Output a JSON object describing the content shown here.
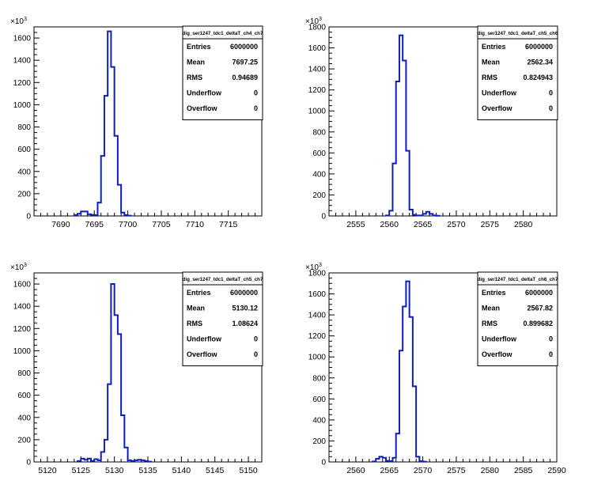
{
  "chart_data": [
    {
      "type": "histogram",
      "title": "",
      "stats_title": "dig_ser1247_tdc1_deltaT_ch4_ch7",
      "exponent_label": "10",
      "exponent_power": "3",
      "xlim": [
        7686,
        7720
      ],
      "ylim": [
        0,
        1700
      ],
      "xticks": [
        7690,
        7695,
        7700,
        7705,
        7710,
        7715
      ],
      "yticks": [
        0,
        200,
        400,
        600,
        800,
        1000,
        1200,
        1400,
        1600
      ],
      "bin_width": 0.5,
      "bins_x": [
        7692,
        7692.5,
        7693,
        7693.5,
        7694,
        7694.5,
        7695,
        7695.5,
        7696,
        7696.5,
        7697,
        7697.5,
        7698,
        7698.5,
        7699,
        7699.5,
        7700
      ],
      "bins_y": [
        8,
        20,
        40,
        40,
        15,
        10,
        8,
        120,
        540,
        1080,
        1660,
        1340,
        720,
        280,
        30,
        8,
        3
      ],
      "stats": {
        "Entries": "6000000",
        "Mean": "7697.25",
        "RMS": "0.94689",
        "Underflow": "0",
        "Overflow": "0"
      }
    },
    {
      "type": "histogram",
      "title": "",
      "stats_title": "dig_ser1247_tdc1_deltaT_ch5_ch6",
      "exponent_label": "10",
      "exponent_power": "3",
      "xlim": [
        2551,
        2585
      ],
      "ylim": [
        0,
        1800
      ],
      "xticks": [
        2555,
        2560,
        2565,
        2570,
        2575,
        2580
      ],
      "yticks": [
        0,
        200,
        400,
        600,
        800,
        1000,
        1200,
        1400,
        1600,
        1800
      ],
      "bin_width": 0.5,
      "bins_x": [
        2559.5,
        2560,
        2560.5,
        2561,
        2561.5,
        2562,
        2562.5,
        2563,
        2563.5,
        2564,
        2564.5,
        2565,
        2565.5,
        2566,
        2566.5,
        2567
      ],
      "bins_y": [
        5,
        50,
        500,
        1280,
        1720,
        1480,
        620,
        60,
        10,
        5,
        5,
        20,
        40,
        20,
        5,
        2
      ],
      "stats": {
        "Entries": "6000000",
        "Mean": "2562.34",
        "RMS": "0.824943",
        "Underflow": "0",
        "Overflow": "0"
      }
    },
    {
      "type": "histogram",
      "title": "",
      "stats_title": "dig_ser1247_tdc1_deltaT_ch5_ch7",
      "exponent_label": "10",
      "exponent_power": "3",
      "xlim": [
        5118,
        5152
      ],
      "ylim": [
        0,
        1700
      ],
      "xticks": [
        5120,
        5125,
        5130,
        5135,
        5140,
        5145,
        5150
      ],
      "yticks": [
        0,
        200,
        400,
        600,
        800,
        1000,
        1200,
        1400,
        1600
      ],
      "bin_width": 0.5,
      "bins_x": [
        5124.5,
        5125,
        5125.5,
        5126,
        5126.5,
        5127,
        5127.5,
        5128,
        5128.5,
        5129,
        5129.5,
        5130,
        5130.5,
        5131,
        5131.5,
        5132,
        5132.5,
        5133,
        5133.5,
        5134,
        5134.5,
        5135
      ],
      "bins_y": [
        8,
        30,
        20,
        30,
        10,
        25,
        15,
        90,
        200,
        700,
        1600,
        1320,
        1150,
        420,
        130,
        15,
        8,
        15,
        20,
        15,
        8,
        3
      ],
      "stats": {
        "Entries": "6000000",
        "Mean": "5130.12",
        "RMS": "1.08624",
        "Underflow": "0",
        "Overflow": "0"
      }
    },
    {
      "type": "histogram",
      "title": "",
      "stats_title": "dig_ser1247_tdc1_deltaT_ch6_ch7",
      "exponent_label": "10",
      "exponent_power": "3",
      "xlim": [
        2556,
        2590
      ],
      "ylim": [
        0,
        1800
      ],
      "xticks": [
        2560,
        2565,
        2570,
        2575,
        2580,
        2585,
        2590
      ],
      "yticks": [
        0,
        200,
        400,
        600,
        800,
        1000,
        1200,
        1400,
        1600,
        1800
      ],
      "bin_width": 0.5,
      "bins_x": [
        2562.5,
        2563,
        2563.5,
        2564,
        2564.5,
        2565,
        2565.5,
        2566,
        2566.5,
        2567,
        2567.5,
        2568,
        2568.5,
        2569,
        2569.5,
        2570
      ],
      "bins_y": [
        5,
        30,
        50,
        40,
        10,
        8,
        40,
        270,
        1060,
        1480,
        1720,
        1380,
        720,
        50,
        8,
        3
      ],
      "stats": {
        "Entries": "6000000",
        "Mean": "2567.82",
        "RMS": "0.899682",
        "Underflow": "0",
        "Overflow": "0"
      }
    }
  ]
}
